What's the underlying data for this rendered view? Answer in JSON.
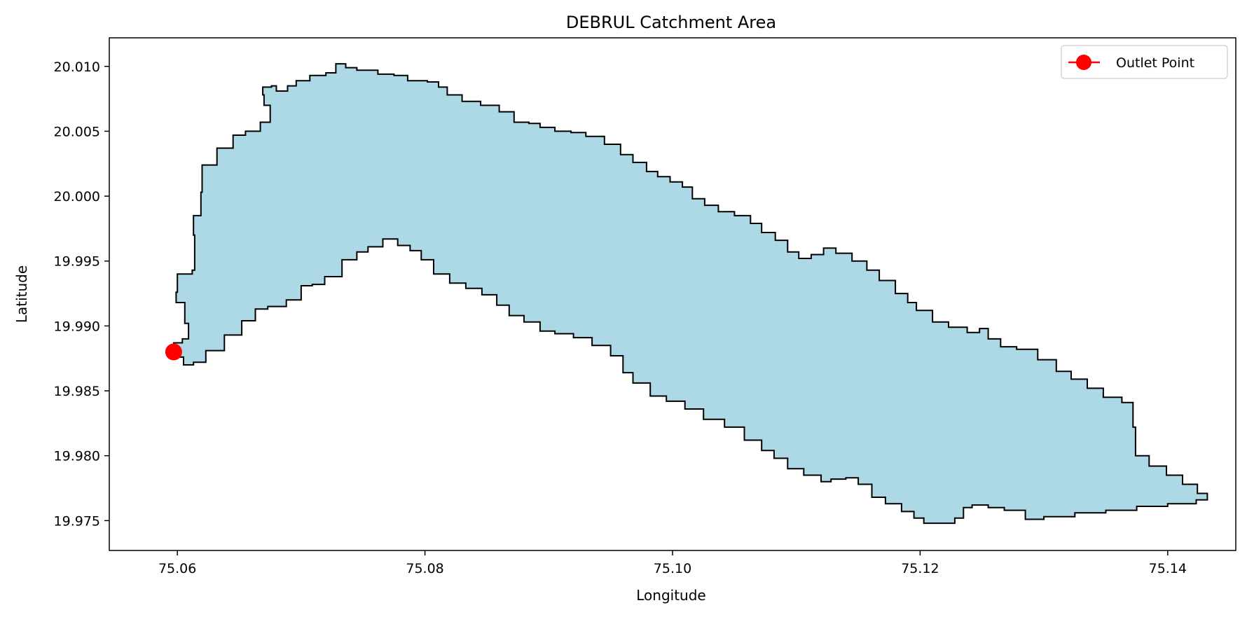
{
  "chart_data": {
    "type": "area",
    "title": "DEBRUL Catchment Area",
    "xlabel": "Longitude",
    "ylabel": "Latitude",
    "xlim": [
      75.0545,
      75.1455
    ],
    "ylim": [
      19.9727,
      20.0122
    ],
    "xticks": [
      75.06,
      75.08,
      75.1,
      75.12,
      75.14
    ],
    "xtick_labels": [
      "75.06",
      "75.08",
      "75.10",
      "75.12",
      "75.14"
    ],
    "yticks": [
      19.975,
      19.98,
      19.985,
      19.99,
      19.995,
      20.0,
      20.005,
      20.01
    ],
    "ytick_labels": [
      "19.975",
      "19.980",
      "19.985",
      "19.990",
      "19.995",
      "20.000",
      "20.005",
      "20.010"
    ],
    "grid": false,
    "legend_position": "top-right",
    "series": [
      {
        "kind": "polygon",
        "fill_color": "#add8e6",
        "edge_color": "#000000",
        "points": [
          [
            75.0597,
            19.9887
          ],
          [
            75.0604,
            19.989
          ],
          [
            75.0609,
            19.9902
          ],
          [
            75.0606,
            19.9918
          ],
          [
            75.0599,
            19.9926
          ],
          [
            75.06,
            19.994
          ],
          [
            75.0612,
            19.9943
          ],
          [
            75.0614,
            19.997
          ],
          [
            75.0613,
            19.9985
          ],
          [
            75.0619,
            20.0003
          ],
          [
            75.062,
            20.0024
          ],
          [
            75.0632,
            20.0037
          ],
          [
            75.0645,
            20.0047
          ],
          [
            75.0655,
            20.005
          ],
          [
            75.0667,
            20.0057
          ],
          [
            75.0675,
            20.0061
          ],
          [
            75.0675,
            20.007
          ],
          [
            75.067,
            20.0078
          ],
          [
            75.0669,
            20.0084
          ],
          [
            75.0676,
            20.0085
          ],
          [
            75.068,
            20.0081
          ],
          [
            75.0689,
            20.0085
          ],
          [
            75.0696,
            20.0089
          ],
          [
            75.0707,
            20.0093
          ],
          [
            75.072,
            20.0095
          ],
          [
            75.0728,
            20.0102
          ],
          [
            75.0736,
            20.0099
          ],
          [
            75.0745,
            20.0097
          ],
          [
            75.0762,
            20.0094
          ],
          [
            75.0775,
            20.0093
          ],
          [
            75.0786,
            20.0089
          ],
          [
            75.0802,
            20.0088
          ],
          [
            75.0811,
            20.0084
          ],
          [
            75.0818,
            20.0078
          ],
          [
            75.083,
            20.0073
          ],
          [
            75.0845,
            20.007
          ],
          [
            75.086,
            20.0065
          ],
          [
            75.0872,
            20.0057
          ],
          [
            75.0884,
            20.0056
          ],
          [
            75.0893,
            20.0053
          ],
          [
            75.0905,
            20.005
          ],
          [
            75.0918,
            20.0049
          ],
          [
            75.093,
            20.0046
          ],
          [
            75.0945,
            20.004
          ],
          [
            75.0958,
            20.0032
          ],
          [
            75.0968,
            20.0026
          ],
          [
            75.0979,
            20.0019
          ],
          [
            75.0988,
            20.0015
          ],
          [
            75.0998,
            20.0011
          ],
          [
            75.1008,
            20.0007
          ],
          [
            75.1016,
            19.9998
          ],
          [
            75.1026,
            19.9993
          ],
          [
            75.1037,
            19.9988
          ],
          [
            75.105,
            19.9985
          ],
          [
            75.1063,
            19.9979
          ],
          [
            75.1072,
            19.9972
          ],
          [
            75.1083,
            19.9966
          ],
          [
            75.1093,
            19.9957
          ],
          [
            75.1102,
            19.9952
          ],
          [
            75.1112,
            19.9955
          ],
          [
            75.1122,
            19.996
          ],
          [
            75.1132,
            19.9956
          ],
          [
            75.1145,
            19.995
          ],
          [
            75.1157,
            19.9943
          ],
          [
            75.1167,
            19.9935
          ],
          [
            75.118,
            19.9925
          ],
          [
            75.119,
            19.9918
          ],
          [
            75.1197,
            19.9912
          ],
          [
            75.121,
            19.9903
          ],
          [
            75.1223,
            19.9899
          ],
          [
            75.1238,
            19.9895
          ],
          [
            75.1248,
            19.9898
          ],
          [
            75.1255,
            19.989
          ],
          [
            75.1265,
            19.9884
          ],
          [
            75.1278,
            19.9882
          ],
          [
            75.1295,
            19.9874
          ],
          [
            75.131,
            19.9865
          ],
          [
            75.1322,
            19.9859
          ],
          [
            75.1335,
            19.9852
          ],
          [
            75.1348,
            19.9845
          ],
          [
            75.1363,
            19.9841
          ],
          [
            75.1372,
            19.9822
          ],
          [
            75.1374,
            19.98
          ],
          [
            75.1385,
            19.9792
          ],
          [
            75.1399,
            19.9785
          ],
          [
            75.1412,
            19.9778
          ],
          [
            75.1424,
            19.9771
          ],
          [
            75.1432,
            19.9766
          ],
          [
            75.1423,
            19.9763
          ],
          [
            75.14,
            19.9761
          ],
          [
            75.1375,
            19.9758
          ],
          [
            75.135,
            19.9756
          ],
          [
            75.1325,
            19.9753
          ],
          [
            75.13,
            19.9751
          ],
          [
            75.1285,
            19.9758
          ],
          [
            75.1268,
            19.976
          ],
          [
            75.1255,
            19.9762
          ],
          [
            75.1242,
            19.976
          ],
          [
            75.1235,
            19.9752
          ],
          [
            75.1228,
            19.9748
          ],
          [
            75.1215,
            19.9748
          ],
          [
            75.1203,
            19.9752
          ],
          [
            75.1195,
            19.9757
          ],
          [
            75.1185,
            19.9763
          ],
          [
            75.1172,
            19.9768
          ],
          [
            75.1161,
            19.9778
          ],
          [
            75.115,
            19.9783
          ],
          [
            75.114,
            19.9782
          ],
          [
            75.1128,
            19.978
          ],
          [
            75.112,
            19.9785
          ],
          [
            75.1106,
            19.979
          ],
          [
            75.1093,
            19.9798
          ],
          [
            75.1082,
            19.9804
          ],
          [
            75.1072,
            19.9812
          ],
          [
            75.1058,
            19.9822
          ],
          [
            75.1042,
            19.9828
          ],
          [
            75.1025,
            19.9836
          ],
          [
            75.101,
            19.9842
          ],
          [
            75.0995,
            19.9846
          ],
          [
            75.0982,
            19.9856
          ],
          [
            75.0968,
            19.9864
          ],
          [
            75.096,
            19.9877
          ],
          [
            75.095,
            19.9885
          ],
          [
            75.0935,
            19.9891
          ],
          [
            75.092,
            19.9894
          ],
          [
            75.0905,
            19.9896
          ],
          [
            75.0893,
            19.9903
          ],
          [
            75.088,
            19.9908
          ],
          [
            75.0868,
            19.9916
          ],
          [
            75.0858,
            19.9924
          ],
          [
            75.0846,
            19.9929
          ],
          [
            75.0833,
            19.9933
          ],
          [
            75.082,
            19.994
          ],
          [
            75.0807,
            19.9951
          ],
          [
            75.0797,
            19.9958
          ],
          [
            75.0788,
            19.9962
          ],
          [
            75.0778,
            19.9967
          ],
          [
            75.0766,
            19.9961
          ],
          [
            75.0754,
            19.9957
          ],
          [
            75.0745,
            19.9951
          ],
          [
            75.0733,
            19.9938
          ],
          [
            75.0719,
            19.9932
          ],
          [
            75.0709,
            19.9931
          ],
          [
            75.07,
            19.992
          ],
          [
            75.0688,
            19.9915
          ],
          [
            75.0673,
            19.9913
          ],
          [
            75.0663,
            19.9904
          ],
          [
            75.0652,
            19.9893
          ],
          [
            75.0638,
            19.9881
          ],
          [
            75.0623,
            19.9872
          ],
          [
            75.0613,
            19.987
          ],
          [
            75.0605,
            19.9876
          ],
          [
            75.0597,
            19.9887
          ]
        ]
      },
      {
        "kind": "marker",
        "name": "Outlet Point",
        "color": "#ff0000",
        "x": 75.0597,
        "y": 19.988
      }
    ]
  }
}
